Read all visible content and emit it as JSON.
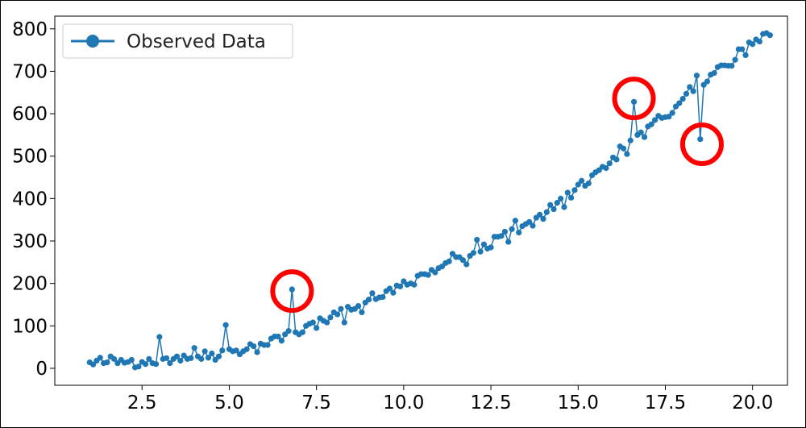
{
  "chart_data": {
    "type": "line",
    "title": "",
    "xlabel": "",
    "ylabel": "",
    "xlim": [
      0.0,
      21.0
    ],
    "ylim": [
      -40,
      830
    ],
    "x_ticks": [
      2.5,
      5.0,
      7.5,
      10.0,
      12.5,
      15.0,
      17.5,
      20.0
    ],
    "x_tick_labels": [
      "2.5",
      "5.0",
      "7.5",
      "10.0",
      "12.5",
      "15.0",
      "17.5",
      "20.0"
    ],
    "y_ticks": [
      0,
      100,
      200,
      300,
      400,
      500,
      600,
      700,
      800
    ],
    "y_tick_labels": [
      "0",
      "100",
      "200",
      "300",
      "400",
      "500",
      "600",
      "700",
      "800"
    ],
    "grid": false,
    "legend": {
      "placement": "top-left"
    },
    "series": [
      {
        "name": "Observed Data",
        "color": "#1f77b4",
        "marker": "circle",
        "points": [
          [
            1.0,
            14
          ],
          [
            1.1,
            9
          ],
          [
            1.2,
            18
          ],
          [
            1.3,
            25
          ],
          [
            1.4,
            12
          ],
          [
            1.5,
            14
          ],
          [
            1.6,
            28
          ],
          [
            1.7,
            22
          ],
          [
            1.8,
            12
          ],
          [
            1.9,
            20
          ],
          [
            2.0,
            13
          ],
          [
            2.1,
            15
          ],
          [
            2.2,
            20
          ],
          [
            2.3,
            2
          ],
          [
            2.4,
            4
          ],
          [
            2.5,
            15
          ],
          [
            2.6,
            10
          ],
          [
            2.7,
            22
          ],
          [
            2.8,
            12
          ],
          [
            2.9,
            10
          ],
          [
            3.0,
            74
          ],
          [
            3.1,
            22
          ],
          [
            3.2,
            24
          ],
          [
            3.3,
            12
          ],
          [
            3.4,
            22
          ],
          [
            3.5,
            28
          ],
          [
            3.6,
            18
          ],
          [
            3.7,
            30
          ],
          [
            3.8,
            22
          ],
          [
            3.9,
            24
          ],
          [
            4.0,
            48
          ],
          [
            4.1,
            28
          ],
          [
            4.2,
            22
          ],
          [
            4.3,
            40
          ],
          [
            4.4,
            25
          ],
          [
            4.5,
            35
          ],
          [
            4.6,
            20
          ],
          [
            4.7,
            28
          ],
          [
            4.8,
            42
          ],
          [
            4.9,
            102
          ],
          [
            5.0,
            45
          ],
          [
            5.1,
            40
          ],
          [
            5.2,
            42
          ],
          [
            5.3,
            33
          ],
          [
            5.4,
            40
          ],
          [
            5.5,
            45
          ],
          [
            5.6,
            57
          ],
          [
            5.7,
            52
          ],
          [
            5.8,
            38
          ],
          [
            5.9,
            58
          ],
          [
            6.0,
            55
          ],
          [
            6.1,
            55
          ],
          [
            6.2,
            70
          ],
          [
            6.3,
            75
          ],
          [
            6.4,
            75
          ],
          [
            6.5,
            65
          ],
          [
            6.6,
            80
          ],
          [
            6.7,
            88
          ],
          [
            6.8,
            186
          ],
          [
            6.9,
            85
          ],
          [
            7.0,
            80
          ],
          [
            7.1,
            85
          ],
          [
            7.2,
            100
          ],
          [
            7.3,
            105
          ],
          [
            7.4,
            108
          ],
          [
            7.5,
            95
          ],
          [
            7.6,
            118
          ],
          [
            7.7,
            112
          ],
          [
            7.8,
            108
          ],
          [
            7.9,
            120
          ],
          [
            8.0,
            132
          ],
          [
            8.1,
            127
          ],
          [
            8.2,
            140
          ],
          [
            8.3,
            108
          ],
          [
            8.4,
            145
          ],
          [
            8.5,
            138
          ],
          [
            8.6,
            140
          ],
          [
            8.7,
            147
          ],
          [
            8.8,
            132
          ],
          [
            8.9,
            155
          ],
          [
            9.0,
            162
          ],
          [
            9.1,
            177
          ],
          [
            9.2,
            163
          ],
          [
            9.3,
            167
          ],
          [
            9.4,
            168
          ],
          [
            9.5,
            182
          ],
          [
            9.6,
            188
          ],
          [
            9.7,
            178
          ],
          [
            9.8,
            195
          ],
          [
            9.9,
            193
          ],
          [
            10.0,
            205
          ],
          [
            10.1,
            197
          ],
          [
            10.2,
            200
          ],
          [
            10.3,
            197
          ],
          [
            10.4,
            218
          ],
          [
            10.5,
            222
          ],
          [
            10.6,
            222
          ],
          [
            10.7,
            220
          ],
          [
            10.8,
            232
          ],
          [
            10.9,
            226
          ],
          [
            11.0,
            236
          ],
          [
            11.1,
            240
          ],
          [
            11.2,
            248
          ],
          [
            11.3,
            252
          ],
          [
            11.4,
            270
          ],
          [
            11.5,
            262
          ],
          [
            11.6,
            262
          ],
          [
            11.7,
            255
          ],
          [
            11.8,
            245
          ],
          [
            11.9,
            265
          ],
          [
            12.0,
            272
          ],
          [
            12.1,
            303
          ],
          [
            12.2,
            275
          ],
          [
            12.3,
            292
          ],
          [
            12.4,
            282
          ],
          [
            12.5,
            285
          ],
          [
            12.6,
            310
          ],
          [
            12.7,
            310
          ],
          [
            12.8,
            312
          ],
          [
            12.9,
            322
          ],
          [
            13.0,
            298
          ],
          [
            13.1,
            328
          ],
          [
            13.2,
            348
          ],
          [
            13.3,
            320
          ],
          [
            13.4,
            335
          ],
          [
            13.5,
            340
          ],
          [
            13.6,
            345
          ],
          [
            13.7,
            336
          ],
          [
            13.8,
            355
          ],
          [
            13.9,
            362
          ],
          [
            14.0,
            352
          ],
          [
            14.1,
            368
          ],
          [
            14.2,
            385
          ],
          [
            14.3,
            375
          ],
          [
            14.4,
            390
          ],
          [
            14.5,
            400
          ],
          [
            14.6,
            380
          ],
          [
            14.7,
            414
          ],
          [
            14.8,
            402
          ],
          [
            14.9,
            420
          ],
          [
            15.0,
            433
          ],
          [
            15.1,
            442
          ],
          [
            15.2,
            430
          ],
          [
            15.3,
            436
          ],
          [
            15.4,
            455
          ],
          [
            15.5,
            462
          ],
          [
            15.6,
            467
          ],
          [
            15.7,
            475
          ],
          [
            15.8,
            472
          ],
          [
            15.9,
            483
          ],
          [
            16.0,
            497
          ],
          [
            16.1,
            492
          ],
          [
            16.2,
            523
          ],
          [
            16.3,
            518
          ],
          [
            16.4,
            505
          ],
          [
            16.5,
            537
          ],
          [
            16.6,
            628
          ],
          [
            16.7,
            550
          ],
          [
            16.8,
            556
          ],
          [
            16.9,
            545
          ],
          [
            17.0,
            570
          ],
          [
            17.1,
            575
          ],
          [
            17.2,
            585
          ],
          [
            17.3,
            595
          ],
          [
            17.4,
            590
          ],
          [
            17.5,
            592
          ],
          [
            17.6,
            593
          ],
          [
            17.7,
            602
          ],
          [
            17.8,
            617
          ],
          [
            17.9,
            625
          ],
          [
            18.0,
            635
          ],
          [
            18.1,
            647
          ],
          [
            18.2,
            663
          ],
          [
            18.3,
            653
          ],
          [
            18.4,
            690
          ],
          [
            18.5,
            540
          ],
          [
            18.6,
            668
          ],
          [
            18.7,
            676
          ],
          [
            18.8,
            692
          ],
          [
            18.9,
            696
          ],
          [
            19.0,
            710
          ],
          [
            19.1,
            714
          ],
          [
            19.2,
            714
          ],
          [
            19.3,
            713
          ],
          [
            19.4,
            713
          ],
          [
            19.5,
            727
          ],
          [
            19.6,
            752
          ],
          [
            19.7,
            752
          ],
          [
            19.8,
            738
          ],
          [
            19.9,
            768
          ],
          [
            20.0,
            764
          ],
          [
            20.1,
            775
          ],
          [
            20.2,
            770
          ],
          [
            20.3,
            788
          ],
          [
            20.4,
            790
          ],
          [
            20.5,
            785
          ]
        ]
      }
    ],
    "annotations": [
      {
        "type": "circle",
        "color": "#ff0000",
        "x": 6.8,
        "y": 182
      },
      {
        "type": "circle",
        "color": "#ff0000",
        "x": 16.6,
        "y": 636
      },
      {
        "type": "circle",
        "color": "#ff0000",
        "x": 18.55,
        "y": 528
      }
    ]
  }
}
